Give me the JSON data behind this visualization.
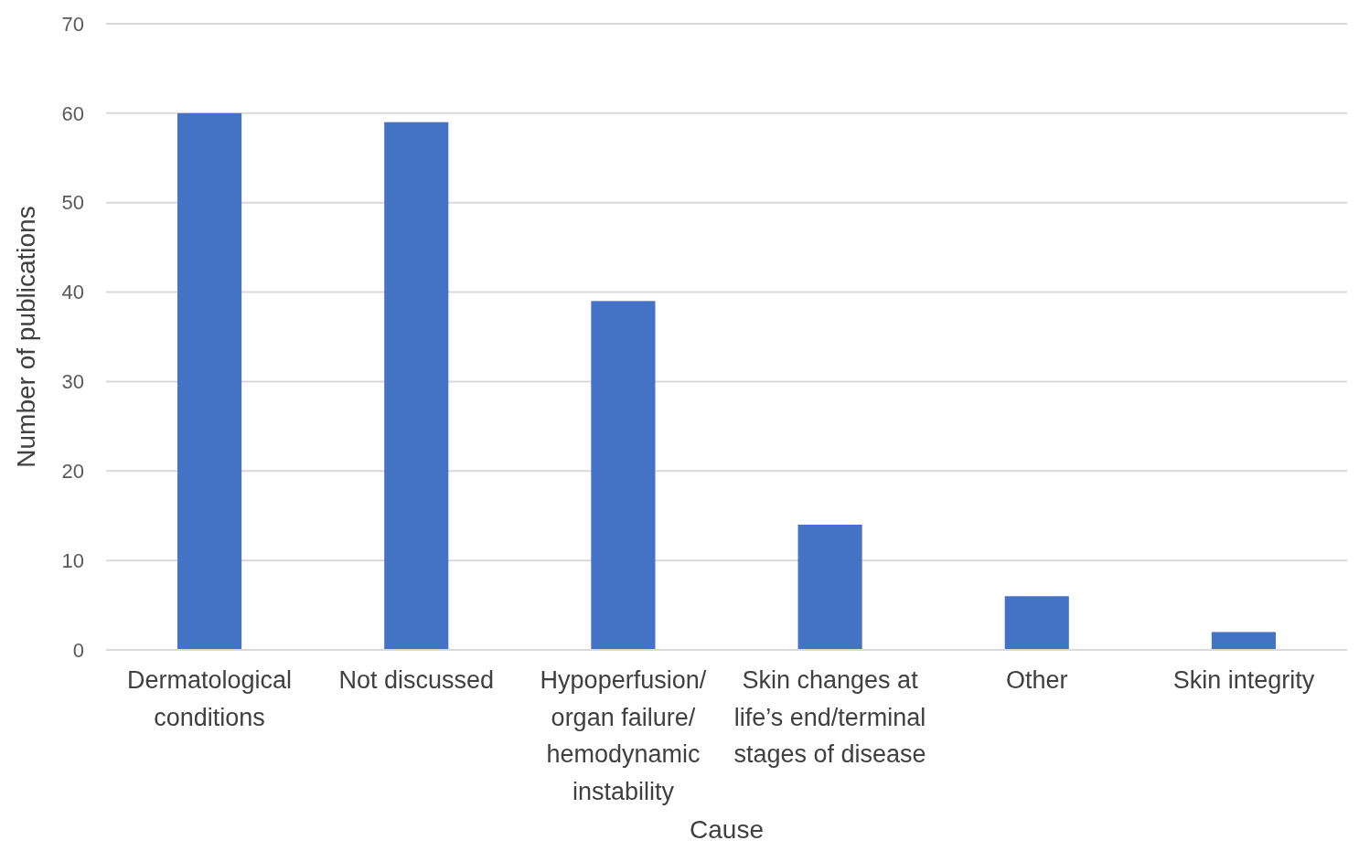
{
  "chart_data": {
    "type": "bar",
    "xlabel": "Cause",
    "ylabel": "Number of publications",
    "categories": [
      "Dermatological conditions",
      "Not discussed",
      "Hypoperfusion/ organ failure/ hemodynamic instability",
      "Skin changes at life’s end/terminal stages of disease",
      "Other",
      "Skin integrity"
    ],
    "values": [
      60,
      59,
      39,
      14,
      6,
      2
    ],
    "color": "#4472c4",
    "ylim": [
      0,
      70
    ],
    "yticks": [
      0,
      10,
      20,
      30,
      40,
      50,
      60,
      70
    ],
    "grid": "y"
  }
}
